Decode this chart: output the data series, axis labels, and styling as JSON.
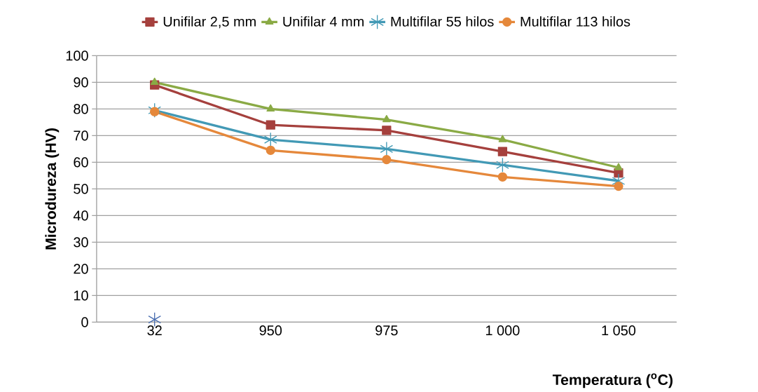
{
  "chart_data": {
    "type": "line",
    "xlabel": "Temperatura ($^{o}$C)",
    "ylabel": "Microdureza (HV)",
    "categories": [
      "32",
      "950",
      "975",
      "1 000",
      "1 050"
    ],
    "series": [
      {
        "name": "Unifilar 2,5 mm",
        "color": "#a5403d",
        "marker": "square",
        "values": [
          89,
          74,
          72,
          64,
          56
        ]
      },
      {
        "name": "Unifilar 4 mm",
        "color": "#8aaa45",
        "marker": "triangle",
        "values": [
          90,
          80,
          76,
          68.5,
          58
        ]
      },
      {
        "name": "Multifilar 55 hilos",
        "color": "#4299b5",
        "marker": "cross",
        "values": [
          79.5,
          68.5,
          65,
          59,
          53
        ]
      },
      {
        "name": "Multifilar 113 hilos",
        "color": "#e5883b",
        "marker": "circle",
        "values": [
          79,
          64.5,
          61,
          54.5,
          51
        ]
      },
      {
        "type": "scatter",
        "color": "#4a6eb0",
        "marker": "cross",
        "values": [
          1,
          null,
          null,
          null,
          null
        ]
      }
    ],
    "ylim": [
      0,
      100
    ],
    "yticks": [
      0,
      10,
      20,
      30,
      40,
      50,
      60,
      70,
      80,
      90,
      100
    ],
    "grid": "y",
    "legend": "top",
    "line_style": "solid"
  }
}
